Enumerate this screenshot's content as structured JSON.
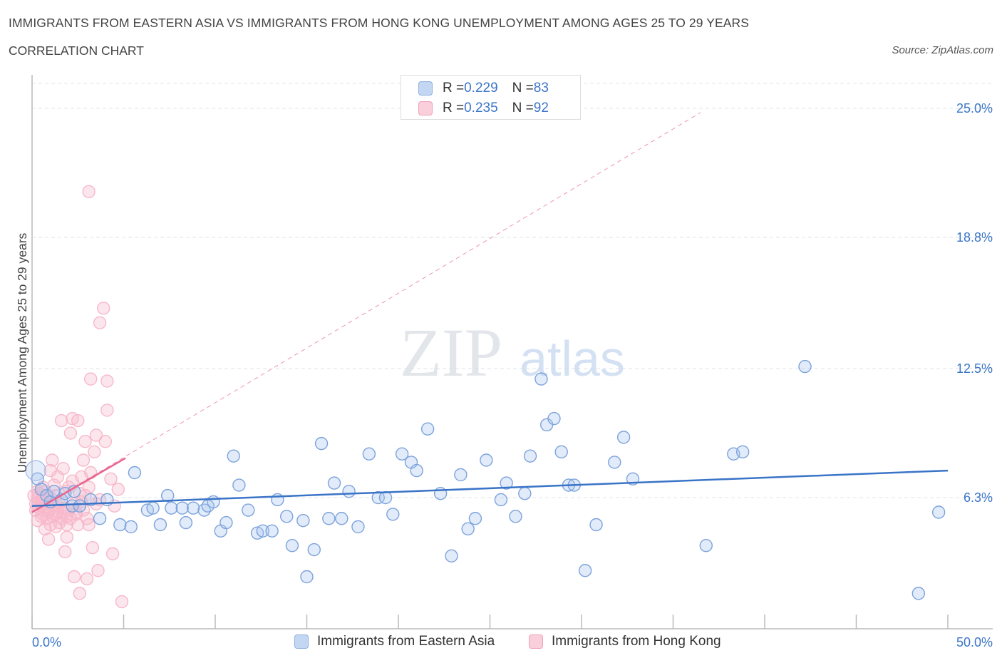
{
  "header": {
    "title": "IMMIGRANTS FROM EASTERN ASIA VS IMMIGRANTS FROM HONG KONG UNEMPLOYMENT AMONG AGES 25 TO 29 YEARS",
    "subtitle": "CORRELATION CHART",
    "source": "Source: ZipAtlas.com"
  },
  "watermark": {
    "zip": "ZIP",
    "atlas": "atlas"
  },
  "colors": {
    "blue": "#3a74c7",
    "blue_fill": "#aac6ee",
    "pink": "#e8668f",
    "pink_fill": "#f7b8ca",
    "grid": "#dfe3e8",
    "axis_text": "#3a74c7"
  },
  "stats": {
    "blue": {
      "r_label": "R = ",
      "r_value": "0.229",
      "n_label": "N = ",
      "n_value": "83"
    },
    "pink": {
      "r_label": "R = ",
      "r_value": "0.235",
      "n_label": "N = ",
      "n_value": "92"
    }
  },
  "chart_data": {
    "type": "scatter",
    "title": "IMMIGRANTS FROM EASTERN ASIA VS IMMIGRANTS FROM HONG KONG UNEMPLOYMENT AMONG AGES 25 TO 29 YEARS",
    "xlabel": "",
    "ylabel": "Unemployment Among Ages 25 to 29 years",
    "xlim": [
      0,
      50
    ],
    "ylim": [
      0,
      26.2
    ],
    "x_tick_labels": [
      "0.0%",
      "50.0%"
    ],
    "y_ticks": [
      6.3,
      12.5,
      18.8,
      25.0
    ],
    "y_tick_labels": [
      "6.3%",
      "12.5%",
      "18.8%",
      "25.0%"
    ],
    "grid": true,
    "legend_position": "bottom",
    "series": [
      {
        "name": "Immigrants from Eastern Asia",
        "color": "#3a74c7",
        "trend": {
          "x": [
            0,
            50
          ],
          "y": [
            5.9,
            7.6
          ],
          "style": "solid"
        },
        "points": [
          [
            0.3,
            7.2
          ],
          [
            0.5,
            6.7
          ],
          [
            0.8,
            6.4
          ],
          [
            1.0,
            6.1
          ],
          [
            1.2,
            6.6
          ],
          [
            1.6,
            6.2
          ],
          [
            1.8,
            6.5
          ],
          [
            2.2,
            5.9
          ],
          [
            2.3,
            6.6
          ],
          [
            2.6,
            5.9
          ],
          [
            3.2,
            6.2
          ],
          [
            3.7,
            5.3
          ],
          [
            4.1,
            6.2
          ],
          [
            4.8,
            5.0
          ],
          [
            5.4,
            4.9
          ],
          [
            5.6,
            7.5
          ],
          [
            6.3,
            5.7
          ],
          [
            6.6,
            5.8
          ],
          [
            7.0,
            5.0
          ],
          [
            7.4,
            6.4
          ],
          [
            7.6,
            5.8
          ],
          [
            8.2,
            5.8
          ],
          [
            8.4,
            5.1
          ],
          [
            8.8,
            5.8
          ],
          [
            9.4,
            5.7
          ],
          [
            9.6,
            5.9
          ],
          [
            9.9,
            6.1
          ],
          [
            10.3,
            4.7
          ],
          [
            10.6,
            5.1
          ],
          [
            11.0,
            8.3
          ],
          [
            11.3,
            6.9
          ],
          [
            11.8,
            5.7
          ],
          [
            12.3,
            4.6
          ],
          [
            12.6,
            4.7
          ],
          [
            13.1,
            4.7
          ],
          [
            13.4,
            6.2
          ],
          [
            13.9,
            5.4
          ],
          [
            14.2,
            4.0
          ],
          [
            14.8,
            5.2
          ],
          [
            15.0,
            2.5
          ],
          [
            15.4,
            3.8
          ],
          [
            15.8,
            8.9
          ],
          [
            16.2,
            5.3
          ],
          [
            16.5,
            7.0
          ],
          [
            16.9,
            5.3
          ],
          [
            17.3,
            6.6
          ],
          [
            17.8,
            4.9
          ],
          [
            18.4,
            8.4
          ],
          [
            18.9,
            6.3
          ],
          [
            19.3,
            6.3
          ],
          [
            19.7,
            5.5
          ],
          [
            20.2,
            8.4
          ],
          [
            20.7,
            8.0
          ],
          [
            21.0,
            7.6
          ],
          [
            21.6,
            9.6
          ],
          [
            22.3,
            6.5
          ],
          [
            22.9,
            3.5
          ],
          [
            23.4,
            7.4
          ],
          [
            23.8,
            4.8
          ],
          [
            24.2,
            5.3
          ],
          [
            24.8,
            8.1
          ],
          [
            25.6,
            6.2
          ],
          [
            25.9,
            7.0
          ],
          [
            26.4,
            5.4
          ],
          [
            26.9,
            6.5
          ],
          [
            27.2,
            8.3
          ],
          [
            27.8,
            12.0
          ],
          [
            28.1,
            9.8
          ],
          [
            28.5,
            10.1
          ],
          [
            28.9,
            8.5
          ],
          [
            29.3,
            6.9
          ],
          [
            29.6,
            6.9
          ],
          [
            30.2,
            2.8
          ],
          [
            30.8,
            5.0
          ],
          [
            31.8,
            8.0
          ],
          [
            32.3,
            9.2
          ],
          [
            32.8,
            7.2
          ],
          [
            36.8,
            4.0
          ],
          [
            38.3,
            8.4
          ],
          [
            38.8,
            8.5
          ],
          [
            42.2,
            12.6
          ],
          [
            48.4,
            1.7
          ],
          [
            49.5,
            5.6
          ]
        ]
      },
      {
        "name": "Immigrants from Hong Kong",
        "color": "#e8668f",
        "trend": {
          "x": [
            0,
            5.1
          ],
          "y": [
            5.6,
            8.2
          ],
          "style": "solid"
        },
        "trend_extended": {
          "x": [
            0,
            36.5
          ],
          "y": [
            5.6,
            24.8
          ],
          "style": "dashed"
        },
        "points": [
          [
            0.1,
            6.4
          ],
          [
            0.2,
            6.0
          ],
          [
            0.2,
            5.7
          ],
          [
            0.3,
            6.3
          ],
          [
            0.3,
            5.2
          ],
          [
            0.4,
            6.5
          ],
          [
            0.4,
            6.1
          ],
          [
            0.5,
            5.9
          ],
          [
            0.5,
            6.2
          ],
          [
            0.6,
            5.5
          ],
          [
            0.6,
            6.8
          ],
          [
            0.7,
            4.8
          ],
          [
            0.7,
            6.6
          ],
          [
            0.8,
            5.3
          ],
          [
            0.8,
            6.0
          ],
          [
            0.9,
            5.7
          ],
          [
            0.9,
            4.3
          ],
          [
            1.0,
            6.3
          ],
          [
            1.0,
            7.6
          ],
          [
            1.1,
            5.4
          ],
          [
            1.1,
            8.1
          ],
          [
            1.2,
            5.9
          ],
          [
            1.2,
            6.9
          ],
          [
            1.3,
            4.9
          ],
          [
            1.3,
            6.4
          ],
          [
            1.4,
            5.6
          ],
          [
            1.4,
            7.3
          ],
          [
            1.5,
            5.1
          ],
          [
            1.5,
            6.0
          ],
          [
            1.6,
            5.3
          ],
          [
            1.6,
            10.0
          ],
          [
            1.7,
            5.6
          ],
          [
            1.7,
            7.7
          ],
          [
            1.8,
            3.7
          ],
          [
            1.8,
            6.6
          ],
          [
            1.9,
            4.4
          ],
          [
            1.9,
            5.0
          ],
          [
            2.0,
            5.7
          ],
          [
            2.0,
            6.8
          ],
          [
            2.1,
            9.4
          ],
          [
            2.1,
            5.3
          ],
          [
            2.2,
            10.1
          ],
          [
            2.2,
            7.1
          ],
          [
            2.3,
            2.5
          ],
          [
            2.3,
            6.0
          ],
          [
            2.4,
            5.5
          ],
          [
            2.5,
            10.0
          ],
          [
            2.5,
            5.0
          ],
          [
            2.6,
            1.7
          ],
          [
            2.6,
            6.5
          ],
          [
            2.7,
            7.3
          ],
          [
            2.8,
            8.1
          ],
          [
            2.8,
            5.7
          ],
          [
            2.9,
            9.0
          ],
          [
            2.9,
            6.4
          ],
          [
            3.0,
            2.4
          ],
          [
            3.0,
            5.3
          ],
          [
            3.1,
            6.8
          ],
          [
            3.1,
            5.0
          ],
          [
            3.2,
            7.5
          ],
          [
            3.2,
            12.0
          ],
          [
            3.3,
            3.9
          ],
          [
            3.4,
            8.5
          ],
          [
            3.5,
            6.0
          ],
          [
            3.5,
            9.3
          ],
          [
            3.6,
            2.8
          ],
          [
            3.7,
            14.7
          ],
          [
            3.7,
            6.2
          ],
          [
            3.9,
            15.4
          ],
          [
            4.0,
            9.0
          ],
          [
            4.1,
            11.9
          ],
          [
            4.1,
            10.5
          ],
          [
            4.3,
            7.2
          ],
          [
            4.4,
            3.6
          ],
          [
            4.5,
            5.9
          ],
          [
            4.7,
            6.7
          ],
          [
            4.9,
            1.3
          ],
          [
            3.1,
            21.0
          ],
          [
            0.4,
            5.8
          ],
          [
            0.7,
            6.0
          ],
          [
            1.1,
            6.2
          ],
          [
            1.4,
            5.9
          ],
          [
            0.9,
            5.6
          ],
          [
            0.6,
            6.3
          ],
          [
            1.7,
            5.8
          ],
          [
            2.4,
            5.6
          ],
          [
            0.3,
            6.6
          ],
          [
            1.0,
            5.0
          ],
          [
            1.9,
            5.4
          ],
          [
            2.7,
            6.1
          ],
          [
            0.5,
            5.4
          ],
          [
            1.3,
            5.5
          ]
        ]
      }
    ]
  }
}
